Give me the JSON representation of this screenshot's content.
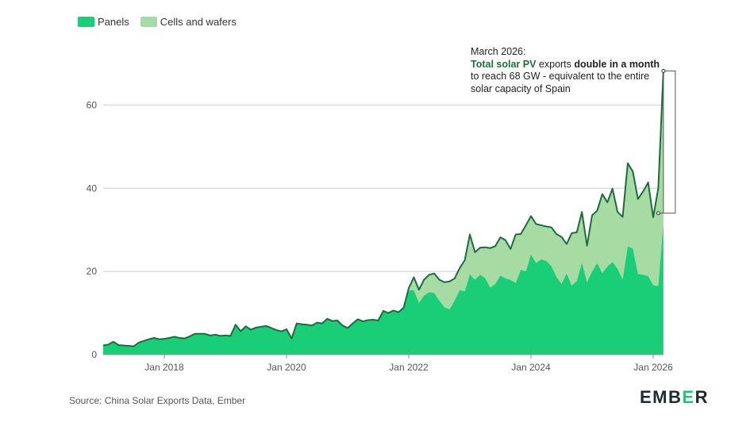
{
  "chart_data": {
    "type": "area",
    "stacked": true,
    "title": "",
    "xlabel": "",
    "ylabel": "",
    "ylim": [
      0,
      70
    ],
    "yticks": [
      0,
      20,
      40,
      60
    ],
    "xtick_labels": [
      "Jan 2018",
      "Jan 2020",
      "Jan 2022",
      "Jan 2024",
      "Jan 2026"
    ],
    "x_start": "2017-01",
    "legend_position": "top-left",
    "grid": true,
    "series": [
      {
        "name": "Panels",
        "color": "#19ce77",
        "values": [
          2.2,
          2.4,
          3.1,
          2.3,
          2.2,
          2.1,
          2.0,
          2.9,
          3.3,
          3.7,
          4.0,
          3.7,
          3.8,
          4.0,
          4.3,
          4.0,
          3.9,
          4.4,
          5.0,
          5.0,
          5.0,
          4.6,
          4.8,
          4.5,
          4.6,
          4.5,
          7.2,
          5.6,
          6.8,
          6.0,
          6.5,
          6.7,
          6.9,
          6.4,
          5.9,
          5.6,
          6.1,
          3.9,
          7.5,
          7.3,
          7.2,
          7.0,
          7.7,
          7.5,
          8.6,
          8.1,
          8.2,
          7.0,
          6.4,
          7.5,
          8.5,
          8.0,
          8.3,
          8.4,
          8.2,
          10.5,
          10.0,
          10.6,
          10.2,
          11.3,
          15.4,
          15.5,
          12.4,
          14.2,
          15.0,
          14.8,
          13.0,
          11.4,
          10.9,
          13.0,
          15.5,
          15.2,
          19.3,
          18.0,
          19.2,
          18.4,
          16.1,
          17.0,
          19.0,
          18.3,
          18.0,
          17.2,
          20.4,
          20.0,
          24.1,
          22.0,
          22.9,
          22.5,
          21.3,
          18.7,
          17.0,
          19.5,
          16.6,
          17.7,
          22.1,
          17.4,
          20.0,
          22.0,
          19.6,
          21.2,
          22.3,
          20.6,
          18.1,
          26.0,
          25.5,
          19.4,
          19.2,
          18.9,
          16.7,
          16.5,
          31.6
        ]
      },
      {
        "name": "Cells and wafers",
        "color": "#a6dba4",
        "values": [
          0,
          0,
          0,
          0,
          0,
          0,
          0,
          0,
          0,
          0,
          0,
          0,
          0,
          0,
          0,
          0,
          0,
          0,
          0,
          0,
          0,
          0,
          0,
          0,
          0,
          0,
          0,
          0,
          0,
          0,
          0,
          0,
          0,
          0,
          0,
          0,
          0,
          0,
          0,
          0,
          0,
          0,
          0,
          0,
          0,
          0,
          0,
          0,
          0,
          0,
          0,
          0,
          0,
          0,
          0,
          0,
          0,
          0,
          0,
          0,
          0.6,
          3.1,
          3.2,
          3.8,
          4.2,
          4.7,
          5.0,
          6.0,
          6.7,
          5.3,
          5.3,
          7.5,
          9.6,
          6.6,
          6.5,
          7.4,
          9.5,
          9.1,
          9.2,
          9.2,
          7.4,
          11.7,
          8.6,
          11.1,
          9.2,
          9.4,
          8.2,
          8.3,
          9.3,
          10.3,
          11.3,
          7.1,
          12.6,
          11.7,
          12.2,
          8.8,
          13.5,
          12.6,
          19.0,
          15.4,
          17.6,
          13.7,
          15.0,
          20.0,
          18.5,
          18.0,
          20.0,
          22.5,
          16.3,
          23.6,
          36.6
        ]
      }
    ],
    "annotation": {
      "line1": "March 2026:",
      "bold1": "Total solar PV",
      "text1": " exports ",
      "bold2": "double in a month",
      "text2": " to reach 68 GW - equivalent to the entire solar capacity of Spain",
      "highlight_from": 34.0,
      "highlight_to": 68.2
    }
  },
  "legend": {
    "panels_label": "Panels",
    "cells_label": "Cells and wafers"
  },
  "source": "Source: China Solar Exports Data, Ember",
  "logo": {
    "left": "EMB",
    "accent": "E",
    "right": "R"
  },
  "colors": {
    "panels": "#19ce77",
    "cells": "#a6dba4",
    "total_line": "#1f6b3f",
    "grid": "#c9cdd8",
    "axis": "#8a92a6"
  }
}
